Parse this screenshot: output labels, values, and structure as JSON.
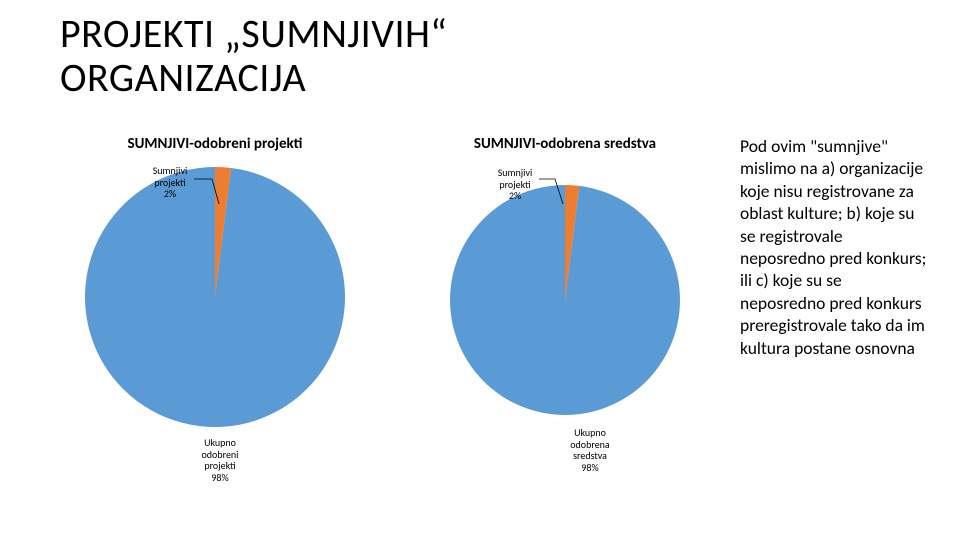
{
  "title_line1": "PROJEKTI „SUMNJIVIH“",
  "title_line2": "ORGANIZACIJA",
  "title_fontsize": 40,
  "sidetext": "Pod ovim \"sumnjive\" mislimo na a) organizacije koje nisu registrovane za oblast kulture; b) koje su se registrovale neposredno pred konkurs; ili c) koje su se neposredno pred konkurs preregistrovale tako da im kultura postane osnovna",
  "sidetext_fontsize": 17.5,
  "charts": [
    {
      "type": "pie",
      "title": "SUMNJIVI-odobreni projekti",
      "title_fontsize": 15,
      "radius": 130,
      "slices": [
        {
          "label_lines": [
            "Sumnjivi",
            "projekti",
            "2%"
          ],
          "value": 2,
          "color": "#ed7d31"
        },
        {
          "label_lines": [
            "Ukupno",
            "odobreni",
            "projekti",
            "98%"
          ],
          "value": 98,
          "color": "#5b9bd5"
        }
      ],
      "label_fontsize": 10,
      "start_angle_deg": -90,
      "background": "#ffffff"
    },
    {
      "type": "pie",
      "title": "SUMNJIVI-odobrena sredstva",
      "title_fontsize": 15,
      "radius": 115,
      "slices": [
        {
          "label_lines": [
            "Sumnjivi",
            "projekti",
            "2%"
          ],
          "value": 2,
          "color": "#ed7d31"
        },
        {
          "label_lines": [
            "Ukupno",
            "odobrena",
            "sredstva",
            "98%"
          ],
          "value": 98,
          "color": "#5b9bd5"
        }
      ],
      "label_fontsize": 10,
      "start_angle_deg": -90,
      "background": "#ffffff"
    }
  ]
}
